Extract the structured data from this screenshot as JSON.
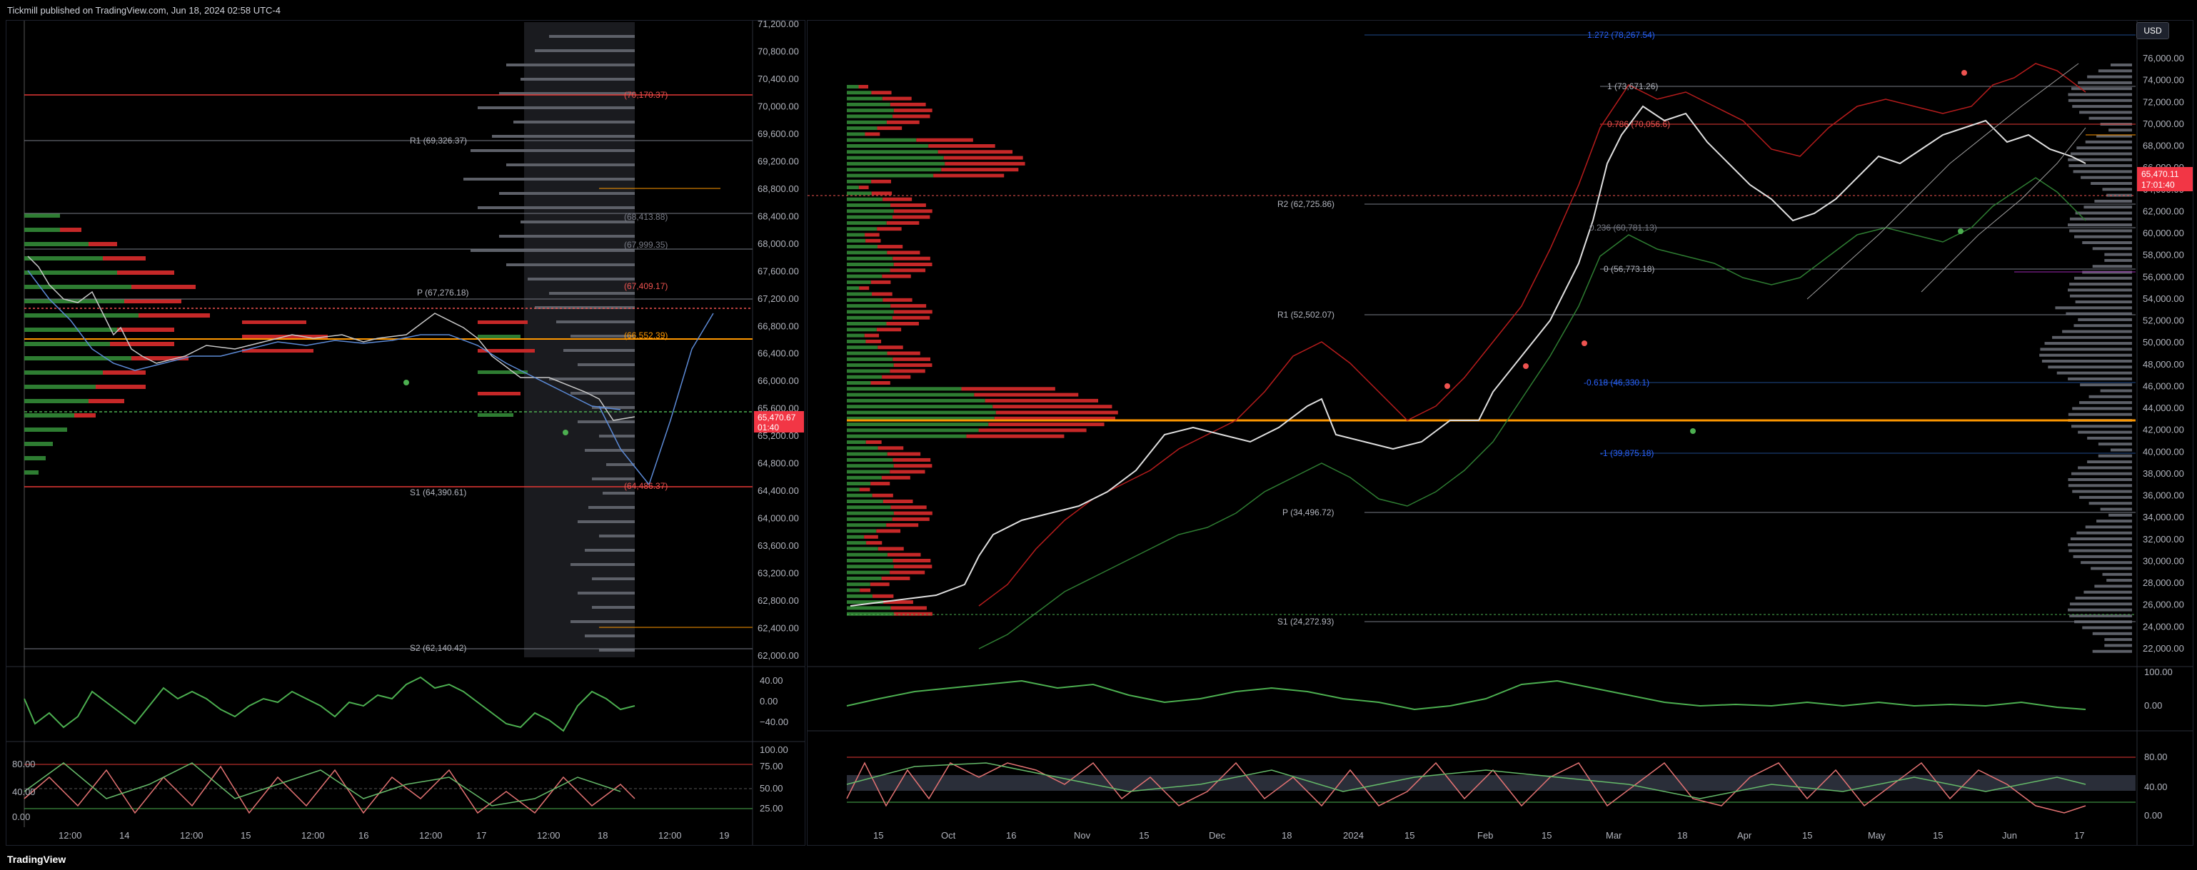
{
  "header": {
    "publisher_text": "Tickmill published on TradingView.com, Jun 18, 2024 02:58 UTC-4"
  },
  "footer": {
    "brand": "TradingView"
  },
  "left_chart": {
    "price_axis": [
      "71,200.00",
      "70,800.00",
      "70,400.00",
      "70,000.00",
      "69,600.00",
      "69,200.00",
      "68,800.00",
      "68,400.00",
      "68,000.00",
      "67,600.00",
      "67,200.00",
      "66,800.00",
      "66,400.00",
      "66,000.00",
      "65,600.00",
      "65,200.00",
      "64,800.00",
      "64,400.00",
      "64,000.00",
      "63,600.00",
      "63,200.00",
      "62,800.00",
      "62,400.00",
      "62,000.00"
    ],
    "time_axis": [
      "12:00",
      "14",
      "12:00",
      "15",
      "12:00",
      "16",
      "12:00",
      "17",
      "12:00",
      "18",
      "12:00",
      "19"
    ],
    "levels": {
      "r2": "(70,170.37)",
      "r1": "R1 (69,326.37)",
      "l1": "(68,413.88)",
      "l2": "(67,999.35)",
      "p": "P (67,276.18)",
      "l3": "(67,409.17)",
      "l4": "(66,552.39)",
      "l5": "(64,486.37)",
      "s1": "S1 (64,390.61)",
      "s2": "S2 (62,140.42)"
    },
    "price_tag": {
      "price": "65,470.67",
      "time": "01:40"
    },
    "osc1_axis": [
      "40.00",
      "0.00",
      "−40.00"
    ],
    "osc2_axis_left": [
      "80.00",
      "40.00",
      "0.00"
    ],
    "osc2_axis_right": [
      "100.00",
      "75.00",
      "50.00",
      "25.00"
    ]
  },
  "right_chart": {
    "currency_button": "USD",
    "price_axis": [
      "76,000.00",
      "74,000.00",
      "72,000.00",
      "70,000.00",
      "68,000.00",
      "66,000.00",
      "64,000.00",
      "62,000.00",
      "60,000.00",
      "58,000.00",
      "56,000.00",
      "54,000.00",
      "52,000.00",
      "50,000.00",
      "48,000.00",
      "46,000.00",
      "44,000.00",
      "42,000.00",
      "40,000.00",
      "38,000.00",
      "36,000.00",
      "34,000.00",
      "32,000.00",
      "30,000.00",
      "28,000.00",
      "26,000.00",
      "24,000.00",
      "22,000.00"
    ],
    "time_axis": [
      "15",
      "Oct",
      "16",
      "Nov",
      "15",
      "Dec",
      "18",
      "2024",
      "15",
      "Feb",
      "15",
      "Mar",
      "18",
      "Apr",
      "15",
      "May",
      "15",
      "Jun",
      "17"
    ],
    "levels": {
      "fib1272": "1.272 (78,267.54)",
      "fib1": "1 (73,671.26)",
      "fib0786": "0.786 (70,056.6)",
      "r2": "R2 (62,725.86)",
      "fib0236": "0.236 (60,781.13)",
      "fib0": "0 (56,773.18)",
      "r1": "R1 (52,502.07)",
      "fibneg": "-0.618 (46,330.1)",
      "fibneg1": "-1 (39,875.18)",
      "p": "P (34,496.72)",
      "s1": "S1 (24,272.93)"
    },
    "price_tag": {
      "price": "65,470.11",
      "time": "17:01:40"
    },
    "osc1_axis": [
      "100.00",
      "0.00"
    ],
    "osc2_axis": [
      "80.00",
      "40.00",
      "0.00"
    ]
  }
}
